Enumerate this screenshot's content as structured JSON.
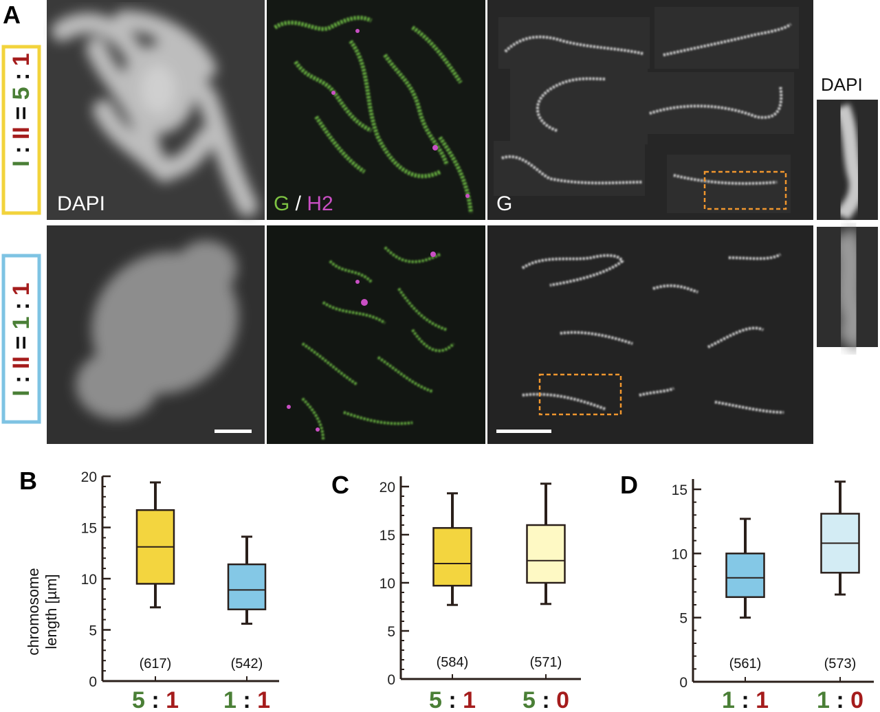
{
  "figure": {
    "panel_a": {
      "letter": "A",
      "rows": [
        {
          "ratio_parts": [
            {
              "t": "I",
              "c": "green"
            },
            {
              "t": " : ",
              "c": "black"
            },
            {
              "t": "II",
              "c": "red"
            },
            {
              "t": " = ",
              "c": "black"
            },
            {
              "t": "5",
              "c": "green"
            },
            {
              "t": " : ",
              "c": "black"
            },
            {
              "t": "1",
              "c": "red"
            }
          ],
          "frame_color": "#f2d33c"
        },
        {
          "ratio_parts": [
            {
              "t": "I",
              "c": "green"
            },
            {
              "t": " : ",
              "c": "black"
            },
            {
              "t": "II",
              "c": "red"
            },
            {
              "t": " = ",
              "c": "black"
            },
            {
              "t": "1",
              "c": "green"
            },
            {
              "t": " : ",
              "c": "black"
            },
            {
              "t": "1",
              "c": "red"
            }
          ],
          "frame_color": "#7ec3e3"
        }
      ],
      "labels": {
        "dapi": "DAPI",
        "g": "G",
        "slash": " / ",
        "h2": "H2",
        "g_single": "G",
        "dapi_inset": "DAPI"
      }
    }
  },
  "colors": {
    "green": "#4a7f36",
    "red": "#a51c1c",
    "black": "#111111",
    "g_channel": "#7dc242",
    "h2_channel": "#c94fc4",
    "dashed_box": "#f0962e"
  },
  "chart_data": [
    {
      "type": "box",
      "panel": "B",
      "ylabel_lines": [
        "chromosome",
        "length [µm]"
      ],
      "ylim": [
        0,
        20
      ],
      "yticks": [
        0,
        5,
        10,
        15,
        20
      ],
      "categories": [
        {
          "parts": [
            {
              "t": "5",
              "c": "green"
            },
            {
              "t": " : ",
              "c": "black"
            },
            {
              "t": "1",
              "c": "red"
            }
          ],
          "n": "(617)",
          "fill": "#f3d53f",
          "whisker_low": 7.2,
          "q1": 9.5,
          "median": 13.1,
          "q3": 16.7,
          "whisker_high": 19.4
        },
        {
          "parts": [
            {
              "t": "1",
              "c": "green"
            },
            {
              "t": " : ",
              "c": "black"
            },
            {
              "t": "1",
              "c": "red"
            }
          ],
          "n": "(542)",
          "fill": "#84c8e6",
          "whisker_low": 5.6,
          "q1": 7.0,
          "median": 8.9,
          "q3": 11.4,
          "whisker_high": 14.1
        }
      ]
    },
    {
      "type": "box",
      "panel": "C",
      "ylim": [
        0,
        20
      ],
      "yticks": [
        0,
        5,
        10,
        15,
        20
      ],
      "categories": [
        {
          "parts": [
            {
              "t": "5",
              "c": "green"
            },
            {
              "t": " : ",
              "c": "black"
            },
            {
              "t": "1",
              "c": "red"
            }
          ],
          "n": "(584)",
          "fill": "#f3d53f",
          "whisker_low": 7.7,
          "q1": 9.7,
          "median": 12.0,
          "q3": 15.7,
          "whisker_high": 19.3
        },
        {
          "parts": [
            {
              "t": "5",
              "c": "green"
            },
            {
              "t": " : ",
              "c": "black"
            },
            {
              "t": "0",
              "c": "red"
            }
          ],
          "n": "(571)",
          "fill": "#fef9c4",
          "whisker_low": 7.8,
          "q1": 10.0,
          "median": 12.3,
          "q3": 16.0,
          "whisker_high": 20.3
        }
      ]
    },
    {
      "type": "box",
      "panel": "D",
      "ylim": [
        0,
        15
      ],
      "yticks": [
        0,
        5,
        10,
        15
      ],
      "categories": [
        {
          "parts": [
            {
              "t": "1",
              "c": "green"
            },
            {
              "t": " : ",
              "c": "black"
            },
            {
              "t": "1",
              "c": "red"
            }
          ],
          "n": "(561)",
          "fill": "#84c8e6",
          "whisker_low": 5.0,
          "q1": 6.6,
          "median": 8.1,
          "q3": 10.0,
          "whisker_high": 12.7
        },
        {
          "parts": [
            {
              "t": "1",
              "c": "green"
            },
            {
              "t": " : ",
              "c": "black"
            },
            {
              "t": "0",
              "c": "red"
            }
          ],
          "n": "(573)",
          "fill": "#d3ecf4",
          "whisker_low": 6.8,
          "q1": 8.5,
          "median": 10.8,
          "q3": 13.1,
          "whisker_high": 15.6
        }
      ]
    }
  ]
}
